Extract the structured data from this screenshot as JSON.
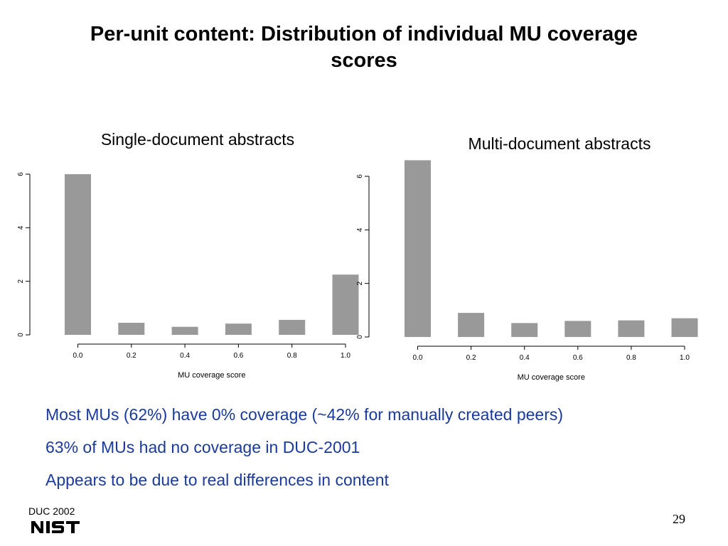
{
  "slide": {
    "title": "Per-unit content: Distribution of individual MU coverage scores",
    "bullets": [
      "Most MUs (62%) have 0% coverage (~42%  for manually created peers)",
      "63% of MUs had no coverage in DUC-2001",
      "Appears to be due to real differences in content"
    ],
    "footer": "DUC 2002",
    "logo": "NIST",
    "page_number": "29"
  },
  "colors": {
    "bar": "#999999",
    "bullet_text": "#1a3a9c"
  },
  "chart_data": [
    {
      "type": "bar",
      "title": "Single-document abstracts",
      "xlabel": "MU coverage score",
      "ylabel": "",
      "x_ticks": [
        "0.0",
        "0.2",
        "0.4",
        "0.6",
        "0.8",
        "1.0"
      ],
      "y_ticks": [
        "0",
        "2",
        "4",
        "6"
      ],
      "ylim": [
        0,
        6
      ],
      "bins": [
        0.0,
        0.2,
        0.4,
        0.6,
        0.8,
        1.0
      ],
      "values": [
        6.0,
        0.45,
        0.3,
        0.42,
        0.56,
        2.25
      ]
    },
    {
      "type": "bar",
      "title": "Multi-document abstracts",
      "xlabel": "MU coverage score",
      "ylabel": "",
      "x_ticks": [
        "0.0",
        "0.2",
        "0.4",
        "0.6",
        "0.8",
        "1.0"
      ],
      "y_ticks": [
        "0",
        "2",
        "4",
        "6"
      ],
      "ylim": [
        0,
        6
      ],
      "bins": [
        0.0,
        0.2,
        0.4,
        0.6,
        0.8,
        1.0
      ],
      "values": [
        6.6,
        0.9,
        0.52,
        0.6,
        0.62,
        0.7
      ]
    }
  ]
}
